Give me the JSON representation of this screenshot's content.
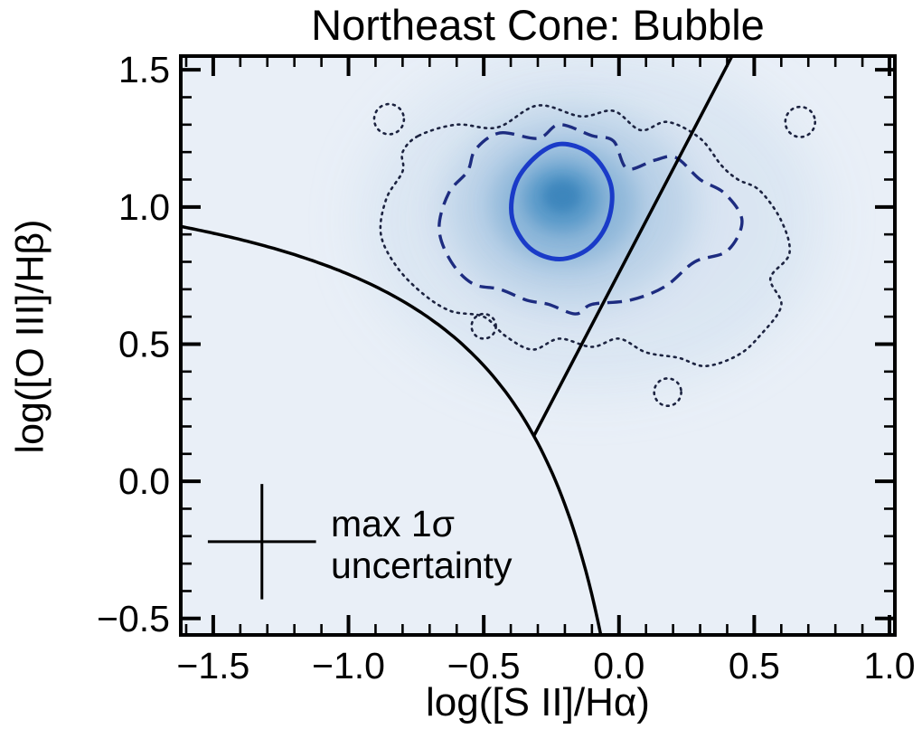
{
  "chart_data": {
    "type": "density_contour",
    "title": "Northeast Cone: Bubble",
    "xlabel": "log([S II]/Hα)",
    "ylabel": "log([O III]/Hβ)",
    "xlim": [
      -1.62,
      1.02
    ],
    "ylim": [
      -0.56,
      1.55
    ],
    "xticks": [
      -1.5,
      -1.0,
      -0.5,
      0.0,
      0.5,
      1.0
    ],
    "xtick_labels": [
      "−1.5",
      "−1.0",
      "−0.5",
      "0.0",
      "0.5",
      "1.0"
    ],
    "yticks": [
      -0.5,
      0.0,
      0.5,
      1.0,
      1.5
    ],
    "ytick_labels": [
      "−0.5",
      "0.0",
      "0.5",
      "1.0",
      "1.5"
    ],
    "minor_tick_step": 0.1,
    "grid": false,
    "legend": null,
    "background_color": "#e9eff7",
    "frame_color": "#000000",
    "density_peak": {
      "x": -0.21,
      "y": 1.04
    },
    "density_layers": [
      {
        "cx": -0.1,
        "cy": 0.95,
        "rx": 0.85,
        "ry": 0.62,
        "color": "#d9e5f2",
        "opacity": 0.9,
        "blur": 28
      },
      {
        "cx": -0.18,
        "cy": 1.0,
        "rx": 0.46,
        "ry": 0.36,
        "color": "#b6cfe6",
        "opacity": 0.88,
        "blur": 20
      },
      {
        "cx": -0.2,
        "cy": 1.01,
        "rx": 0.27,
        "ry": 0.22,
        "color": "#86b2d7",
        "opacity": 0.88,
        "blur": 14
      },
      {
        "cx": -0.21,
        "cy": 1.03,
        "rx": 0.14,
        "ry": 0.12,
        "color": "#5597c8",
        "opacity": 0.9,
        "blur": 9
      },
      {
        "cx": -0.21,
        "cy": 1.04,
        "rx": 0.07,
        "ry": 0.06,
        "color": "#3a84bb",
        "opacity": 0.9,
        "blur": 6
      }
    ],
    "contour_levels": [
      {
        "name": "outer",
        "style": "dotted",
        "color": "#1c2340",
        "width": 2.6,
        "points": [
          [
            -0.74,
            1.26
          ],
          [
            -0.6,
            1.3
          ],
          [
            -0.45,
            1.29
          ],
          [
            -0.3,
            1.37
          ],
          [
            -0.14,
            1.33
          ],
          [
            -0.02,
            1.35
          ],
          [
            0.08,
            1.28
          ],
          [
            0.18,
            1.31
          ],
          [
            0.3,
            1.25
          ],
          [
            0.38,
            1.15
          ],
          [
            0.44,
            1.1
          ],
          [
            0.52,
            1.06
          ],
          [
            0.6,
            0.95
          ],
          [
            0.63,
            0.83
          ],
          [
            0.56,
            0.74
          ],
          [
            0.6,
            0.64
          ],
          [
            0.52,
            0.53
          ],
          [
            0.44,
            0.46
          ],
          [
            0.32,
            0.42
          ],
          [
            0.22,
            0.45
          ],
          [
            0.1,
            0.47
          ],
          [
            0.0,
            0.52
          ],
          [
            -0.1,
            0.49
          ],
          [
            -0.22,
            0.52
          ],
          [
            -0.32,
            0.48
          ],
          [
            -0.42,
            0.53
          ],
          [
            -0.5,
            0.6
          ],
          [
            -0.62,
            0.62
          ],
          [
            -0.72,
            0.68
          ],
          [
            -0.82,
            0.78
          ],
          [
            -0.88,
            0.9
          ],
          [
            -0.86,
            1.03
          ],
          [
            -0.8,
            1.13
          ],
          [
            -0.8,
            1.2
          ]
        ]
      },
      {
        "name": "middle",
        "style": "dashed",
        "color": "#1d2c80",
        "width": 3.4,
        "points": [
          [
            -0.44,
            1.27
          ],
          [
            -0.3,
            1.25
          ],
          [
            -0.22,
            1.3
          ],
          [
            -0.1,
            1.26
          ],
          [
            -0.02,
            1.24
          ],
          [
            0.03,
            1.14
          ],
          [
            0.13,
            1.17
          ],
          [
            0.21,
            1.18
          ],
          [
            0.3,
            1.1
          ],
          [
            0.39,
            1.05
          ],
          [
            0.455,
            0.95
          ],
          [
            0.4,
            0.84
          ],
          [
            0.28,
            0.8
          ],
          [
            0.17,
            0.71
          ],
          [
            0.04,
            0.66
          ],
          [
            -0.1,
            0.645
          ],
          [
            -0.16,
            0.61
          ],
          [
            -0.26,
            0.645
          ],
          [
            -0.34,
            0.66
          ],
          [
            -0.44,
            0.7
          ],
          [
            -0.54,
            0.72
          ],
          [
            -0.62,
            0.8
          ],
          [
            -0.665,
            0.92
          ],
          [
            -0.63,
            1.05
          ],
          [
            -0.56,
            1.13
          ],
          [
            -0.53,
            1.21
          ]
        ]
      },
      {
        "name": "inner",
        "style": "solid",
        "color": "#1a3bc8",
        "width": 5,
        "points": [
          [
            -0.21,
            1.23
          ],
          [
            -0.1,
            1.19
          ],
          [
            -0.03,
            1.08
          ],
          [
            -0.04,
            0.95
          ],
          [
            -0.11,
            0.85
          ],
          [
            -0.22,
            0.81
          ],
          [
            -0.33,
            0.85
          ],
          [
            -0.395,
            0.96
          ],
          [
            -0.38,
            1.09
          ],
          [
            -0.3,
            1.19
          ]
        ]
      }
    ],
    "contour_islands": [
      {
        "style": "dotted",
        "cx": -0.85,
        "cy": 1.32,
        "r": 0.055
      },
      {
        "style": "dotted",
        "cx": 0.67,
        "cy": 1.31,
        "r": 0.055
      },
      {
        "style": "dotted",
        "cx": 0.18,
        "cy": 0.325,
        "r": 0.05
      },
      {
        "style": "dotted",
        "cx": -0.5,
        "cy": 0.565,
        "r": 0.045
      }
    ],
    "demarcations": [
      {
        "name": "kewley-s2-curve",
        "type": "hyperbola",
        "formula": "y = 0.72/(x − 0.32) + 1.30",
        "a": 0.72,
        "b": 0.32,
        "c": 1.3,
        "color": "#000000",
        "width": 3.5
      },
      {
        "name": "seyfert-liner-line",
        "type": "line",
        "formula": "y = 1.89x + 0.76",
        "slope": 1.89,
        "intercept": 0.76,
        "x_start": -0.315,
        "color": "#000000",
        "width": 3.5
      }
    ],
    "error_cross": {
      "x": -1.32,
      "y": -0.22,
      "xerr": 0.2,
      "yerr": 0.21,
      "color": "#000000",
      "width": 3,
      "label_line1": "max 1σ",
      "label_line2": "uncertainty"
    }
  }
}
